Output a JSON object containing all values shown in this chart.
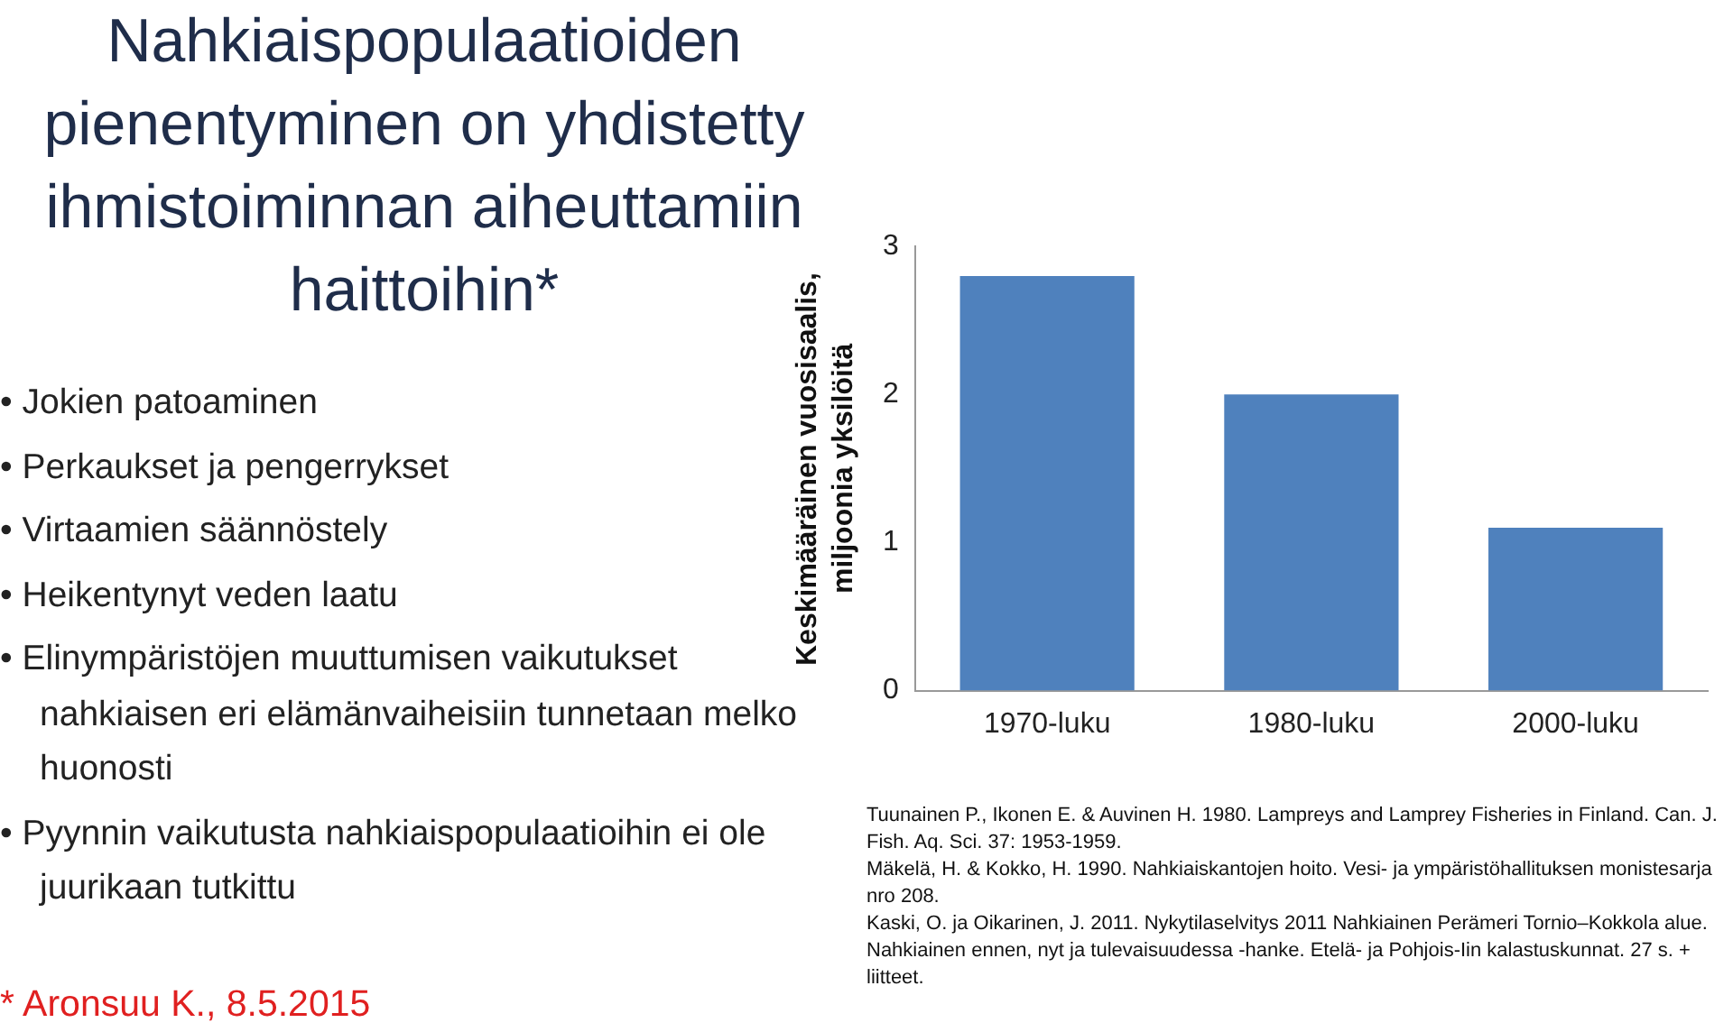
{
  "chart_data": {
    "type": "bar",
    "title": "Nahkiaispopulaatioiden pienentyminen on yhdistetty ihmistoiminnan aiheuttamiin haittoihin*",
    "ylabel": "Keskimääräinen vuosisaalis, miljoonia yksilöitä",
    "categories": [
      "1970-luku",
      "1980-luku",
      "2000-luku"
    ],
    "values": [
      2.8,
      2.0,
      1.1
    ],
    "color": "#4f81bd",
    "ylim": [
      0,
      3
    ],
    "yticks": [
      0,
      1,
      2,
      3
    ],
    "grid": false,
    "legend": false,
    "annotations": [
      "• Jokien patoaminen",
      "• Perkaukset ja pengerrykset",
      "• Virtaamien säännöstely",
      "• Heikentynyt veden laatu",
      "• Elinympäristöjen muuttumisen vaikutukset nahkiaisen eri elämänvaiheisiin tunnetaan melko huonosti",
      "• Pyynnin vaikutusta nahkiaispopulaatioihin ei ole juurikaan tutkittu",
      "* Aronsuu K., 8.5.2015",
      "Tuunainen P., Ikonen E. & Auvinen H. 1980. Lampreys and Lamprey Fisheries in Finland. Can. J. Fish. Aq. Sci. 37: 1953-1959.",
      "Mäkelä, H. & Kokko, H. 1990. Nahkiaiskantojen hoito. Vesi- ja ympäristöhallituksen monistesarja nro 208.",
      "Kaski, O. ja Oikarinen, J. 2011. Nykytilaselvitys 2011 Nahkiainen Perämeri Tornio–Kokkola alue. Nahkiainen ennen, nyt ja tulevaisuudessa -hanke. Etelä- ja Pohjois-Iin kalastuskunnat. 27 s. + liitteet."
    ]
  }
}
